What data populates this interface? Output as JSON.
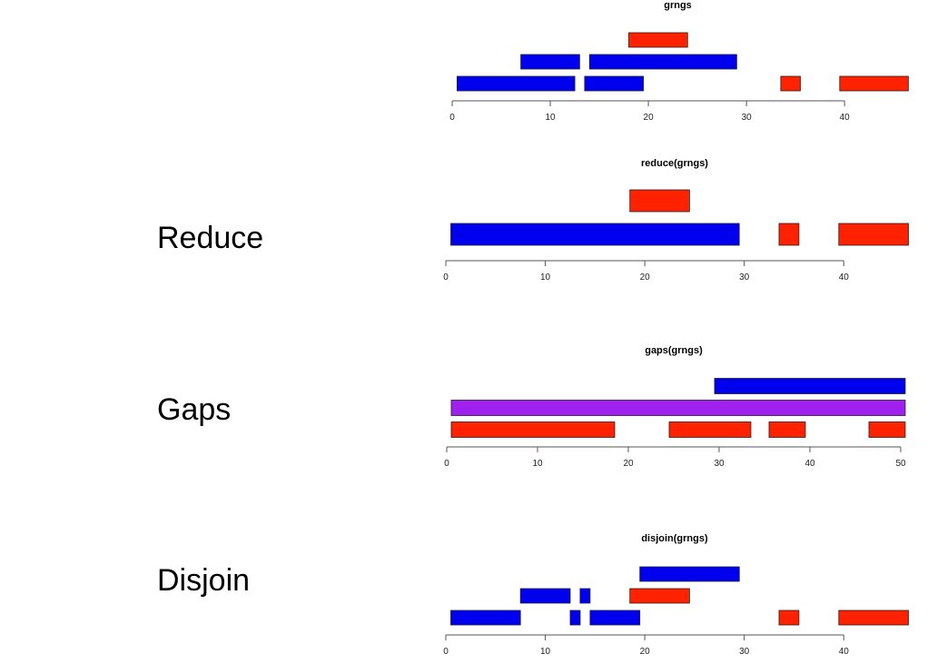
{
  "colors": {
    "blue": "#0000ee",
    "red": "#ff2200",
    "purple": "#a020f0",
    "axis": "#555555"
  },
  "labels": {
    "reduce": "Reduce",
    "gaps": "Gaps",
    "disjoin": "Disjoin"
  },
  "panels": [
    {
      "id": "grngs",
      "title": "grngs",
      "xlim": [
        0,
        46
      ],
      "ticks": [
        "0",
        "10",
        "20",
        "30",
        "40"
      ],
      "tick_values": [
        0,
        10,
        20,
        30,
        40
      ],
      "ranges": [
        {
          "start": 18,
          "end": 24,
          "row": 2,
          "color": "red"
        },
        {
          "start": 7,
          "end": 13,
          "row": 1,
          "color": "blue"
        },
        {
          "start": 14,
          "end": 29,
          "row": 1,
          "color": "blue"
        },
        {
          "start": 0.5,
          "end": 12.5,
          "row": 0,
          "color": "blue"
        },
        {
          "start": 13.5,
          "end": 19.5,
          "row": 0,
          "color": "blue"
        },
        {
          "start": 33.5,
          "end": 35.5,
          "row": 0,
          "color": "red"
        },
        {
          "start": 39.5,
          "end": 46.5,
          "row": 0,
          "color": "red"
        }
      ]
    },
    {
      "id": "reduce",
      "title": "reduce(grngs)",
      "xlim": [
        0,
        46
      ],
      "ticks": [
        "0",
        "10",
        "20",
        "30",
        "40"
      ],
      "tick_values": [
        0,
        10,
        20,
        30,
        40
      ],
      "ranges": [
        {
          "start": 18.5,
          "end": 24.5,
          "row": 1,
          "color": "red"
        },
        {
          "start": 0.5,
          "end": 29.5,
          "row": 0,
          "color": "blue"
        },
        {
          "start": 33.5,
          "end": 35.5,
          "row": 0,
          "color": "red"
        },
        {
          "start": 39.5,
          "end": 46.5,
          "row": 0,
          "color": "red"
        }
      ]
    },
    {
      "id": "gaps",
      "title": "gaps(grngs)",
      "xlim": [
        0,
        50
      ],
      "ticks": [
        "0",
        "10",
        "20",
        "30",
        "40",
        "50"
      ],
      "tick_values": [
        0,
        10,
        20,
        30,
        40,
        50
      ],
      "ranges": [
        {
          "start": 29.5,
          "end": 50.5,
          "row": 2,
          "color": "blue"
        },
        {
          "start": 0.5,
          "end": 50.5,
          "row": 1,
          "color": "purple"
        },
        {
          "start": 0.5,
          "end": 18.5,
          "row": 0,
          "color": "red"
        },
        {
          "start": 24.5,
          "end": 33.5,
          "row": 0,
          "color": "red"
        },
        {
          "start": 35.5,
          "end": 39.5,
          "row": 0,
          "color": "red"
        },
        {
          "start": 46.5,
          "end": 50.5,
          "row": 0,
          "color": "red"
        }
      ]
    },
    {
      "id": "disjoin",
      "title": "disjoin(grngs)",
      "xlim": [
        0,
        46
      ],
      "ticks": [
        "0",
        "10",
        "20",
        "30",
        "40"
      ],
      "tick_values": [
        0,
        10,
        20,
        30,
        40
      ],
      "ranges": [
        {
          "start": 19.5,
          "end": 29.5,
          "row": 2,
          "color": "blue"
        },
        {
          "start": 7.5,
          "end": 12.5,
          "row": 1,
          "color": "blue"
        },
        {
          "start": 13.5,
          "end": 14.5,
          "row": 1,
          "color": "blue"
        },
        {
          "start": 18.5,
          "end": 24.5,
          "row": 1,
          "color": "red"
        },
        {
          "start": 0.5,
          "end": 7.5,
          "row": 0,
          "color": "blue"
        },
        {
          "start": 12.5,
          "end": 13.5,
          "row": 0,
          "color": "blue"
        },
        {
          "start": 14.5,
          "end": 19.5,
          "row": 0,
          "color": "blue"
        },
        {
          "start": 33.5,
          "end": 35.5,
          "row": 0,
          "color": "red"
        },
        {
          "start": 39.5,
          "end": 46.5,
          "row": 0,
          "color": "red"
        }
      ]
    }
  ]
}
